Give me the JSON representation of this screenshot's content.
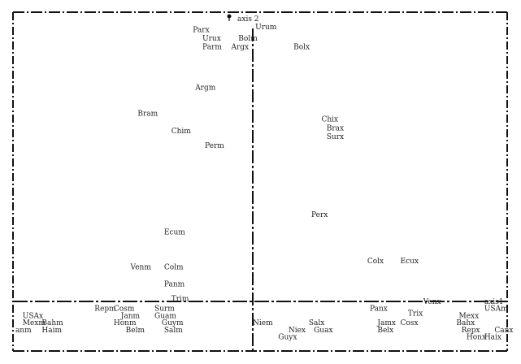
{
  "chart_data": {
    "type": "scatter",
    "title": "",
    "xlabel": "axis1",
    "ylabel": "axis 2",
    "xlim": [
      -1.0,
      1.0
    ],
    "ylim": [
      -0.21,
      1.0
    ],
    "grid": false,
    "points": [
      {
        "label": "Parx",
        "x": -0.25,
        "y": 0.94
      },
      {
        "label": "Urux",
        "x": -0.21,
        "y": 0.91
      },
      {
        "label": "Parm",
        "x": -0.21,
        "y": 0.88
      },
      {
        "label": "Bolm",
        "x": -0.06,
        "y": 0.91
      },
      {
        "label": "Argx",
        "x": -0.09,
        "y": 0.88
      },
      {
        "label": "Urum",
        "x": 0.01,
        "y": 0.95
      },
      {
        "label": "Bolx",
        "x": 0.16,
        "y": 0.88
      },
      {
        "label": "Argm",
        "x": -0.24,
        "y": 0.74
      },
      {
        "label": "Bram",
        "x": -0.48,
        "y": 0.65
      },
      {
        "label": "Chim",
        "x": -0.34,
        "y": 0.59
      },
      {
        "label": "Perm",
        "x": -0.2,
        "y": 0.54
      },
      {
        "label": "Chix",
        "x": 0.27,
        "y": 0.63
      },
      {
        "label": "Brax",
        "x": 0.29,
        "y": 0.6
      },
      {
        "label": "Surx",
        "x": 0.29,
        "y": 0.57
      },
      {
        "label": "Perx",
        "x": 0.23,
        "y": 0.3
      },
      {
        "label": "Ecum",
        "x": -0.37,
        "y": 0.24
      },
      {
        "label": "Venm",
        "x": -0.51,
        "y": 0.12
      },
      {
        "label": "Colm",
        "x": -0.37,
        "y": 0.12
      },
      {
        "label": "Colx",
        "x": 0.45,
        "y": 0.14
      },
      {
        "label": "Ecux",
        "x": 0.58,
        "y": 0.14
      },
      {
        "label": "Panm",
        "x": -0.37,
        "y": 0.06
      },
      {
        "label": "Trim",
        "x": -0.34,
        "y": 0.01
      },
      {
        "label": "Venx",
        "x": 0.67,
        "y": 0.0
      },
      {
        "label": "axis1",
        "x": 0.91,
        "y": 0.0
      },
      {
        "label": "USAm",
        "x": 0.91,
        "y": -0.03
      },
      {
        "label": "Repm",
        "x": -0.66,
        "y": -0.03
      },
      {
        "label": "Cosm",
        "x": -0.58,
        "y": -0.03
      },
      {
        "label": "Surm",
        "x": -0.41,
        "y": -0.03
      },
      {
        "label": "USAx",
        "x": -0.96,
        "y": -0.06
      },
      {
        "label": "Janm",
        "x": -0.55,
        "y": -0.06
      },
      {
        "label": "Guam",
        "x": -0.41,
        "y": -0.06
      },
      {
        "label": "Panx",
        "x": 0.46,
        "y": -0.03
      },
      {
        "label": "Trix",
        "x": 0.61,
        "y": -0.05
      },
      {
        "label": "Mexx",
        "x": 0.81,
        "y": -0.06
      },
      {
        "label": "Mexm",
        "x": -0.96,
        "y": -0.09
      },
      {
        "label": "Bahm",
        "x": -0.88,
        "y": -0.09
      },
      {
        "label": "Honm",
        "x": -0.58,
        "y": -0.09
      },
      {
        "label": "Guym",
        "x": -0.38,
        "y": -0.09
      },
      {
        "label": "Salx",
        "x": 0.22,
        "y": -0.09
      },
      {
        "label": "Jamx",
        "x": 0.49,
        "y": -0.09
      },
      {
        "label": "Cosx",
        "x": 0.58,
        "y": -0.09
      },
      {
        "label": "Bahx",
        "x": 0.8,
        "y": -0.09
      },
      {
        "label": "Niem",
        "x": 0.0,
        "y": -0.09
      },
      {
        "label": "Haim",
        "x": -0.88,
        "y": -0.12
      },
      {
        "label": "Belm",
        "x": -0.53,
        "y": -0.12
      },
      {
        "label": "Salm",
        "x": -0.37,
        "y": -0.12
      },
      {
        "label": "Niex",
        "x": 0.14,
        "y": -0.12
      },
      {
        "label": "Guax",
        "x": 0.24,
        "y": -0.12
      },
      {
        "label": "Belx",
        "x": 0.49,
        "y": -0.12
      },
      {
        "label": "Repx",
        "x": 0.82,
        "y": -0.12
      },
      {
        "label": "Canx",
        "x": 0.95,
        "y": -0.12
      },
      {
        "label": "anm",
        "x": -0.99,
        "y": -0.12
      },
      {
        "label": "Guyx",
        "x": 0.1,
        "y": -0.15
      },
      {
        "label": "Honx",
        "x": 0.84,
        "y": -0.15
      },
      {
        "label": "Haix",
        "x": 0.91,
        "y": -0.15
      }
    ]
  }
}
